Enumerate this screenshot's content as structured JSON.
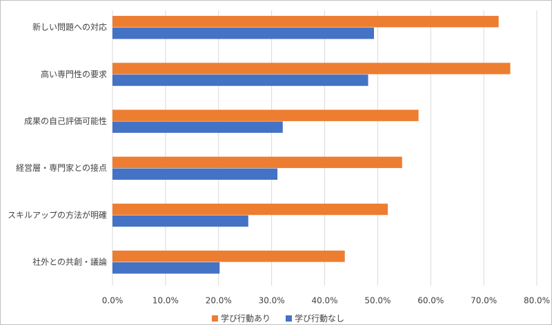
{
  "chart_data": {
    "type": "bar",
    "orientation": "horizontal",
    "categories": [
      "新しい問題への対応",
      "高い専門性の要求",
      "成果の自己評価可能性",
      "経営層・専門家との接点",
      "スキルアップの方法が明確",
      "社外との共創・議論"
    ],
    "series": [
      {
        "name": "学び行動あり",
        "color": "#ed7d31",
        "values": [
          72.8,
          75.0,
          57.7,
          54.6,
          51.9,
          43.8
        ]
      },
      {
        "name": "学び行動なし",
        "color": "#4472c4",
        "values": [
          49.3,
          48.2,
          32.1,
          31.1,
          25.6,
          20.2
        ]
      }
    ],
    "xlim": [
      0,
      80
    ],
    "xticks": [
      {
        "value": 0,
        "label": "0.0%"
      },
      {
        "value": 10,
        "label": "10.0%"
      },
      {
        "value": 20,
        "label": "20.0%"
      },
      {
        "value": 30,
        "label": "30.0%"
      },
      {
        "value": 40,
        "label": "40.0%"
      },
      {
        "value": 50,
        "label": "50.0%"
      },
      {
        "value": 60,
        "label": "60.0%"
      },
      {
        "value": 70,
        "label": "70.0%"
      },
      {
        "value": 80,
        "label": "80.0%"
      }
    ],
    "grid": true,
    "legend": "bottom"
  }
}
